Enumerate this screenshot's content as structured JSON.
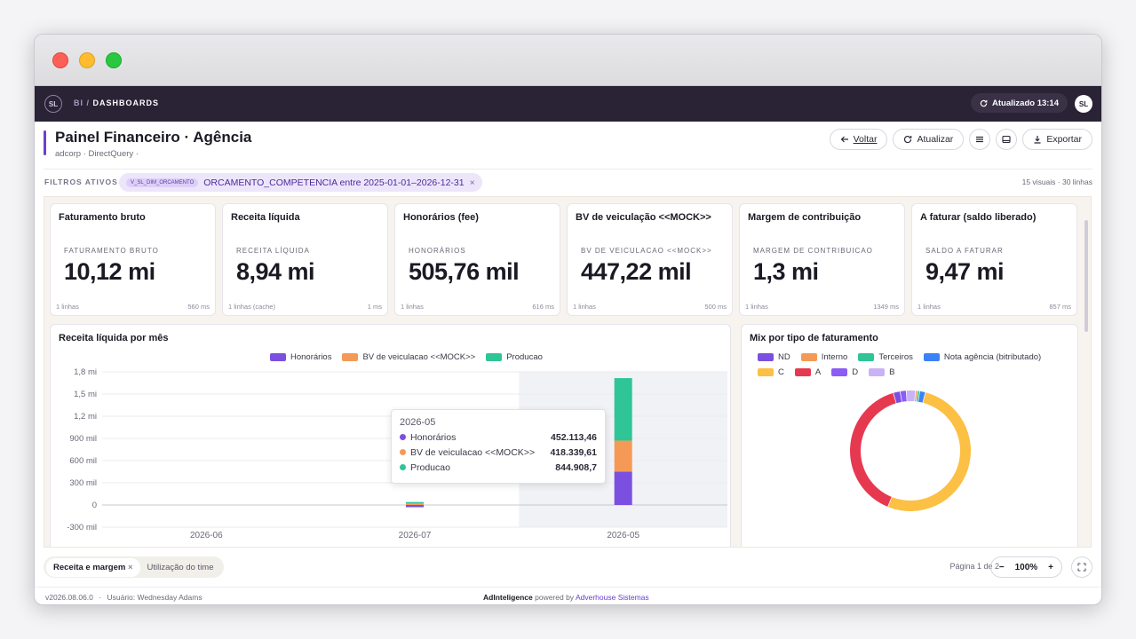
{
  "topbar": {
    "logo": "SL",
    "section": "BI",
    "sep": "/",
    "page": "DASHBOARDS",
    "updated": "Atualizado 13:14",
    "avatar": "SL"
  },
  "header": {
    "title": "Painel Financeiro · Agência",
    "subtitle": "adcorp · DirectQuery ·",
    "buttons": {
      "back": "Voltar",
      "refresh": "Atualizar",
      "export": "Exportar"
    }
  },
  "filters": {
    "label": "FILTROS ATIVOS",
    "chip_tag": "V_SL_DIM_ORCAMENTO",
    "chip_text": "ORCAMENTO_COMPETENCIA entre 2025-01-01–2026-12-31",
    "chip_close": "×",
    "meta": "15 visuais · 30 linhas"
  },
  "kpis": [
    {
      "title": "Faturamento bruto",
      "label": "FATURAMENTO BRUTO",
      "value": "10,12 mi",
      "rows": "1 linhas",
      "time": "560 ms"
    },
    {
      "title": "Receita líquida",
      "label": "RECEITA LÍQUIDA",
      "value": "8,94 mi",
      "rows": "1 linhas (cache)",
      "time": "1 ms"
    },
    {
      "title": "Honorários (fee)",
      "label": "HONORÁRIOS",
      "value": "505,76 mil",
      "rows": "1 linhas",
      "time": "616 ms"
    },
    {
      "title": "BV de veiculação <<MOCK>>",
      "label": "BV DE VEICULACAO <<MOCK>>",
      "value": "447,22 mil",
      "rows": "1 linhas",
      "time": "500 ms"
    },
    {
      "title": "Margem de contribuição",
      "label": "MARGEM DE CONTRIBUICAO",
      "value": "1,3 mi",
      "rows": "1 linhas",
      "time": "1349 ms"
    },
    {
      "title": "A faturar (saldo liberado)",
      "label": "SALDO A FATURAR",
      "value": "9,47 mi",
      "rows": "1 linhas",
      "time": "857 ms"
    }
  ],
  "bar_panel": {
    "title": "Receita líquida por mês",
    "tooltip": {
      "title": "2026-05",
      "rows": [
        {
          "name": "Honorários",
          "value": "452.113,46"
        },
        {
          "name": "BV de veiculacao <<MOCK>>",
          "value": "418.339,61"
        },
        {
          "name": "Producao",
          "value": "844.908,7"
        }
      ]
    }
  },
  "donut_panel": {
    "title": "Mix por tipo de faturamento"
  },
  "colors": {
    "honorarios": "#7b4fe0",
    "bv": "#f59a56",
    "producao": "#2fc596",
    "accent": "#6a3fd0"
  },
  "chart_data": [
    {
      "type": "bar",
      "stacked": true,
      "title": "Receita líquida por mês",
      "categories": [
        "2026-06",
        "2026-07",
        "2026-05"
      ],
      "series": [
        {
          "name": "Honorários",
          "values": [
            0,
            -30000,
            452113.46
          ]
        },
        {
          "name": "BV de veiculacao <<MOCK>>",
          "values": [
            0,
            20000,
            418339.61
          ]
        },
        {
          "name": "Producao",
          "values": [
            0,
            20000,
            844908.7
          ]
        }
      ],
      "yticks": [
        "1,8 mi",
        "1,5 mi",
        "1,2 mi",
        "900 mil",
        "600 mil",
        "300 mil",
        "0",
        "-300 mil"
      ],
      "ylim": [
        -300000,
        1800000
      ],
      "grid": true,
      "legend": "top"
    },
    {
      "type": "pie",
      "donut": true,
      "title": "Mix por tipo de faturamento",
      "labels": [
        "C",
        "A",
        "ND",
        "D",
        "B",
        "Interno",
        "Terceiros",
        "Nota agência (bitributado)"
      ],
      "values": [
        51,
        38.5,
        1.8,
        1.6,
        2.4,
        0.5,
        0.6,
        1.5
      ],
      "colors": [
        "#fcc044",
        "#e63950",
        "#7b4fe0",
        "#8b5cf6",
        "#c9b2f5",
        "#f59a56",
        "#2fc596",
        "#3b82f6"
      ],
      "legend": "top"
    }
  ],
  "legend_donut": [
    {
      "name": "ND",
      "color": "#7b4fe0"
    },
    {
      "name": "Interno",
      "color": "#f59a56"
    },
    {
      "name": "Terceiros",
      "color": "#2fc596"
    },
    {
      "name": "Nota agência (bitributado)",
      "color": "#3b82f6"
    },
    {
      "name": "C",
      "color": "#fcc044"
    },
    {
      "name": "A",
      "color": "#e63950"
    },
    {
      "name": "D",
      "color": "#8b5cf6"
    },
    {
      "name": "B",
      "color": "#c9b2f5"
    }
  ],
  "tabs": [
    {
      "label": "Receita e margem",
      "close": "×"
    },
    {
      "label": "Utilização do time"
    }
  ],
  "pager": "Página 1 de 2",
  "zoom": {
    "minus": "−",
    "value": "100%",
    "plus": "+"
  },
  "footer": {
    "version": "v2026.08.06.0",
    "sep": "·",
    "user": "Usuário: Wednesday Adams",
    "brand": "AdInteligence",
    "powered": "powered by",
    "company": "Adverhouse Sistemas"
  }
}
